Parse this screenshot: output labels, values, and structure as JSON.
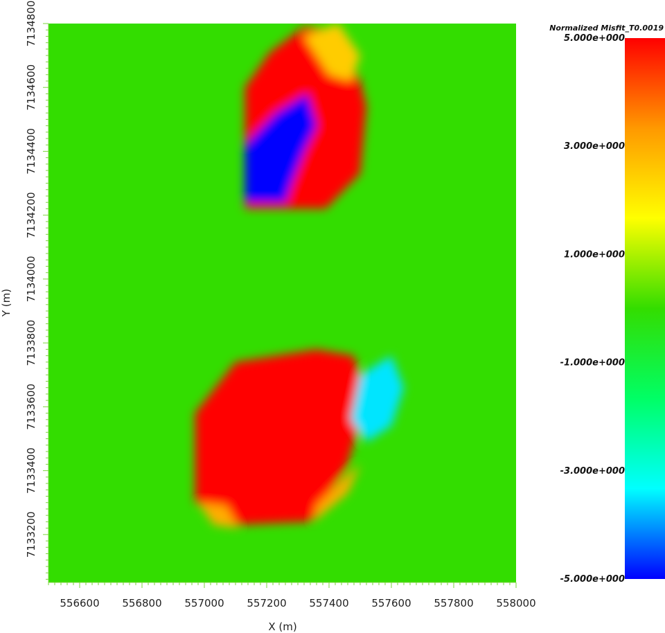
{
  "chart_data": {
    "type": "heatmap",
    "title": "",
    "xlabel": "X (m)",
    "ylabel": "Y (m)",
    "xlim": [
      556500,
      558000
    ],
    "ylim": [
      7133050,
      7134800
    ],
    "xticks": [
      556600,
      556800,
      557000,
      557200,
      557400,
      557600,
      557800,
      558000
    ],
    "yticks": [
      7133200,
      7133400,
      7133600,
      7133800,
      7134000,
      7134200,
      7134400,
      7134600,
      7134800
    ],
    "xtick_labels": [
      "556600",
      "556800",
      "557000",
      "557200",
      "557400",
      "557600",
      "557800",
      "558000"
    ],
    "ytick_labels": [
      "7133200",
      "7133400",
      "7133600",
      "7133800",
      "7134000",
      "7134200",
      "7134400",
      "7134600",
      "7134800"
    ],
    "background_value": 0,
    "anomalies": [
      {
        "polygon": [
          [
            557130,
            7134600
          ],
          [
            557210,
            7134710
          ],
          [
            557320,
            7134790
          ],
          [
            557420,
            7134780
          ],
          [
            557500,
            7134620
          ],
          [
            557520,
            7134540
          ],
          [
            557500,
            7134330
          ],
          [
            557390,
            7134220
          ],
          [
            557130,
            7134220
          ]
        ],
        "value": 5
      },
      {
        "polygon": [
          [
            557130,
            7134420
          ],
          [
            557230,
            7134520
          ],
          [
            557330,
            7134580
          ],
          [
            557360,
            7134480
          ],
          [
            557320,
            7134400
          ],
          [
            557280,
            7134300
          ],
          [
            557260,
            7134240
          ],
          [
            557130,
            7134240
          ]
        ],
        "value": -5
      },
      {
        "polygon": [
          [
            556970,
            7133580
          ],
          [
            557100,
            7133740
          ],
          [
            557360,
            7133780
          ],
          [
            557480,
            7133760
          ],
          [
            557520,
            7133620
          ],
          [
            557460,
            7133420
          ],
          [
            557340,
            7133240
          ],
          [
            557110,
            7133230
          ],
          [
            556970,
            7133300
          ]
        ],
        "value": 5
      },
      {
        "polygon": [
          [
            557500,
            7133700
          ],
          [
            557600,
            7133760
          ],
          [
            557640,
            7133660
          ],
          [
            557600,
            7133540
          ],
          [
            557520,
            7133490
          ],
          [
            557470,
            7133560
          ]
        ],
        "value": -3.5
      },
      {
        "polygon": [
          [
            557320,
            7134760
          ],
          [
            557430,
            7134800
          ],
          [
            557500,
            7134700
          ],
          [
            557470,
            7134620
          ],
          [
            557400,
            7134640
          ]
        ],
        "value": 2.5
      },
      {
        "polygon": [
          [
            556980,
            7133300
          ],
          [
            557030,
            7133230
          ],
          [
            557110,
            7133220
          ],
          [
            557070,
            7133290
          ]
        ],
        "value": 3
      },
      {
        "polygon": [
          [
            557350,
            7133240
          ],
          [
            557460,
            7133330
          ],
          [
            557500,
            7133420
          ],
          [
            557440,
            7133370
          ],
          [
            557360,
            7133290
          ]
        ],
        "value": 3
      }
    ],
    "colorbar": {
      "title": "Normalized Misfit_T0.0019",
      "min": -5,
      "max": 5,
      "labels": [
        "5.000e+000",
        "3.000e+000",
        "1.000e+000",
        "-1.000e+000",
        "-3.000e+000",
        "-5.000e+000"
      ],
      "label_values": [
        5,
        3,
        1,
        -1,
        -3,
        -5
      ],
      "colors": [
        "#0000ff",
        "#00ffff",
        "#00ff66",
        "#33dd00",
        "#ffff00",
        "#ff9900",
        "#ff0000"
      ]
    }
  }
}
